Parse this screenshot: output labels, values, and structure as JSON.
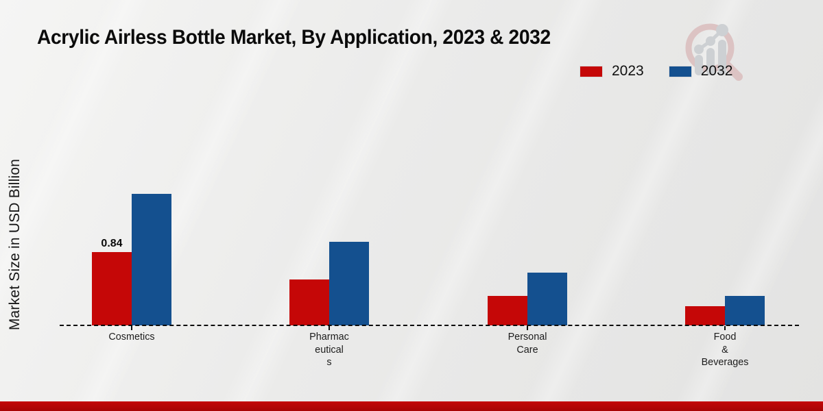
{
  "title": "Acrylic Airless Bottle Market, By Application, 2023 & 2032",
  "legend": {
    "items": [
      {
        "label": "2023",
        "color": "#c50707"
      },
      {
        "label": "2032",
        "color": "#14508f"
      }
    ]
  },
  "watermark": {
    "icon": "magnifier-growth-chart-logo",
    "ring_color": "#dcc3c3",
    "glyph_color": "#cdd0d3"
  },
  "footer": {
    "accent_color": "#ba0606"
  },
  "chart_data": {
    "type": "bar",
    "title": "Acrylic Airless Bottle Market, By Application, 2023 & 2032",
    "xlabel": "",
    "ylabel": "Market Size in USD Billion",
    "units": "USD Billion",
    "categories": [
      "Cosmetics",
      "Pharmaceuticals",
      "Personal Care",
      "Food & Beverages"
    ],
    "category_label_lines": [
      [
        "Cosmetics"
      ],
      [
        "Pharmac",
        "eutical",
        "s"
      ],
      [
        "Personal",
        "Care"
      ],
      [
        "Food",
        "&",
        "Beverages"
      ]
    ],
    "series": [
      {
        "name": "2023",
        "color": "#c50707",
        "values": [
          0.84,
          0.53,
          0.34,
          0.22
        ]
      },
      {
        "name": "2032",
        "color": "#14508f",
        "values": [
          1.51,
          0.96,
          0.61,
          0.34
        ]
      }
    ],
    "data_labels": [
      {
        "series_index": 0,
        "category_index": 0,
        "text": "0.84"
      }
    ],
    "ylim": [
      0,
      1.6
    ],
    "grid": false,
    "y_axis_ticks_visible": false,
    "baseline_style": "dashed",
    "legend_position": "top-right"
  }
}
